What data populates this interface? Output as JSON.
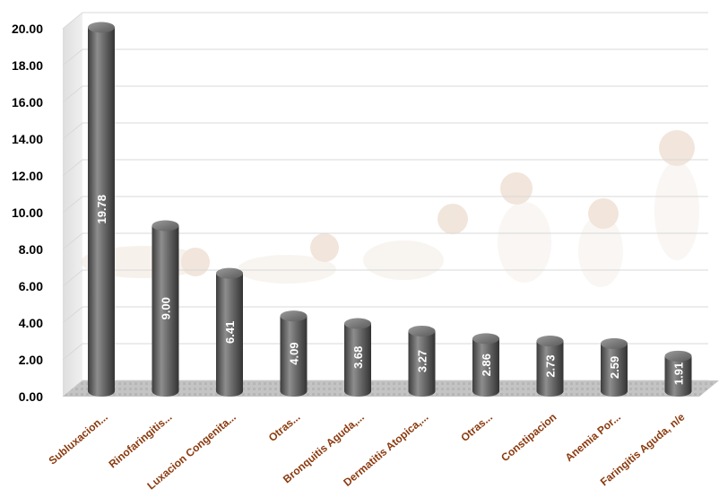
{
  "chart_data": {
    "type": "bar",
    "style": "3d-cylinder",
    "categories": [
      "Subluxacion...",
      "Rinofaringitis...",
      "Luxacion Congenita...",
      "Otras...",
      "Bronquitis Aguda,...",
      "Dermatitis Atopica,...",
      "Otras...",
      "Constipacion",
      "Anemia Por...",
      "Faringitis Aguda, n/e"
    ],
    "values": [
      19.78,
      9.0,
      6.41,
      4.09,
      3.68,
      3.27,
      2.86,
      2.73,
      2.59,
      1.91
    ],
    "value_labels": [
      "19.78",
      "9.00",
      "6.41",
      "4.09",
      "3.68",
      "3.27",
      "2.86",
      "2.73",
      "2.59",
      "1.91"
    ],
    "y_ticks": [
      "0.00",
      "2.00",
      "4.00",
      "6.00",
      "8.00",
      "10.00",
      "12.00",
      "14.00",
      "16.00",
      "18.00",
      "20.00"
    ],
    "ylim": [
      0,
      20
    ],
    "title": "",
    "xlabel": "",
    "ylabel": "",
    "grid": true,
    "legend": "none",
    "colors": {
      "bar": "#5a5a5a",
      "bar_highlight": "#9a9a9a",
      "category_label": "#8b3a0e",
      "value_label": "#ffffff",
      "floor": "#bdbdbd",
      "grid": "#d9d9d9"
    },
    "background_image": "baby-development-stages-photo"
  }
}
